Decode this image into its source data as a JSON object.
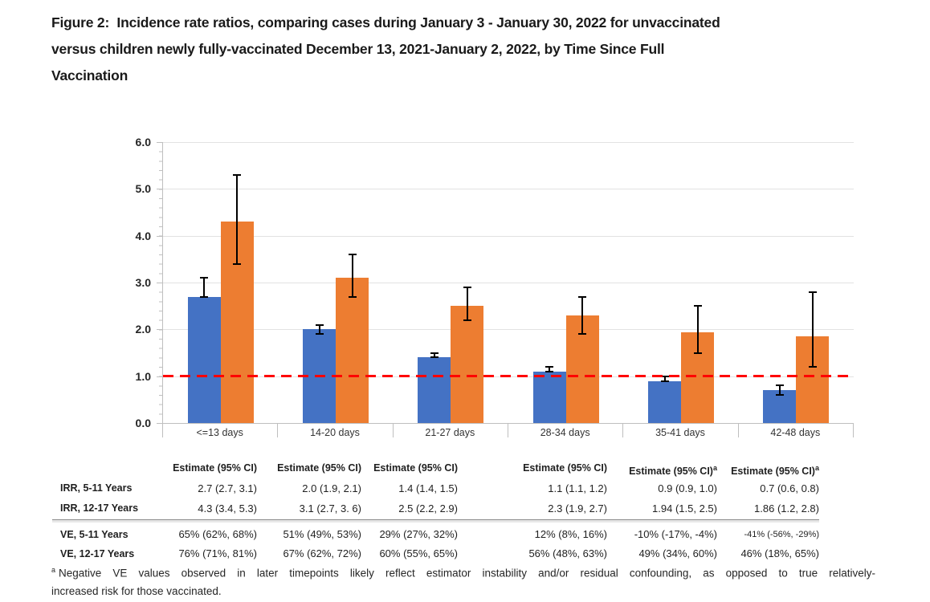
{
  "title_lines": [
    "Figure 2:  Incidence rate ratios, comparing cases during January 3 - January 30, 2022 for unvaccinated",
    "versus children newly fully-vaccinated December 13, 2021-January 2, 2022, by Time Since Full",
    "Vaccination"
  ],
  "chart_data": {
    "type": "bar",
    "title": "Figure 2: Incidence rate ratios, comparing cases during January 3 - January 30, 2022 for unvaccinated versus children newly fully-vaccinated December 13, 2021-January 2, 2022, by Time Since Full Vaccination",
    "xlabel": "",
    "ylabel": "",
    "categories": [
      "<=13 days",
      "14-20 days",
      "21-27 days",
      "28-34 days",
      "35-41 days",
      "42-48 days"
    ],
    "series": [
      {
        "name": "IRR, 5-11 Years",
        "color": "#4472C4",
        "values": [
          2.7,
          2.0,
          1.4,
          1.1,
          0.9,
          0.7
        ],
        "ci_low": [
          2.7,
          1.9,
          1.4,
          1.1,
          0.9,
          0.6
        ],
        "ci_high": [
          3.1,
          2.1,
          1.5,
          1.2,
          1.0,
          0.8
        ]
      },
      {
        "name": "IRR, 12-17 Years",
        "color": "#ED7D31",
        "values": [
          4.3,
          3.1,
          2.5,
          2.3,
          1.94,
          1.86
        ],
        "ci_low": [
          3.4,
          2.7,
          2.2,
          1.9,
          1.5,
          1.2
        ],
        "ci_high": [
          5.3,
          3.6,
          2.9,
          2.7,
          2.5,
          2.8
        ]
      }
    ],
    "ylim": [
      0,
      6
    ],
    "ytick_step": 1.0,
    "ytick_labels": [
      "0.0",
      "1.0",
      "2.0",
      "3.0",
      "4.0",
      "5.0",
      "6.0"
    ],
    "reference_line": {
      "value": 1.0,
      "color": "#FF0000",
      "style": "dashed"
    },
    "grid": true,
    "legend": "none",
    "error_bar_color": "#000000",
    "axis_color": "#BFBFBF",
    "gridline_color": "#E2E2E2"
  },
  "table": {
    "header_columns": [
      {
        "label": "Estimate (95% CI)",
        "sup": ""
      },
      {
        "label": "Estimate (95% CI)",
        "sup": ""
      },
      {
        "label": "Estimate (95% CI)",
        "sup": ""
      },
      {
        "label": "Estimate (95% CI)",
        "sup": ""
      },
      {
        "label": "Estimate (95% CI)",
        "sup": "a"
      },
      {
        "label": "Estimate (95% CI)",
        "sup": "a"
      }
    ],
    "rows": [
      {
        "label": "IRR, 5-11 Years",
        "group": "irr",
        "values": [
          "2.7 (2.7, 3.1)",
          "2.0 (1.9, 2.1)",
          "1.4 (1.4, 1.5)",
          "1.1 (1.1, 1.2)",
          "0.9 (0.9, 1.0)",
          "0.7 (0.6, 0.8)"
        ]
      },
      {
        "label": "IRR, 12-17 Years",
        "group": "irr",
        "values": [
          "4.3 (3.4, 5.3)",
          "3.1 (2.7, 3. 6)",
          "2.5 (2.2, 2.9)",
          "2.3 (1.9, 2.7)",
          "1.94 (1.5, 2.5)",
          "1.86 (1.2, 2.8)"
        ]
      },
      {
        "label": "VE, 5-11 Years",
        "group": "ve",
        "values": [
          "65% (62%, 68%)",
          "51% (49%, 53%)",
          "29% (27%, 32%)",
          "12% (8%, 16%)",
          "-10% (-17%, -4%)",
          "-41% (-56%, -29%)"
        ]
      },
      {
        "label": "VE, 12-17 Years",
        "group": "ve",
        "values": [
          "76% (71%, 81%)",
          "67% (62%, 72%)",
          "60% (55%, 65%)",
          "56% (48%, 63%)",
          "49% (34%, 60%)",
          "46% (18%, 65%)"
        ]
      }
    ]
  },
  "footnote": {
    "sup": "a",
    "line1": "Negative VE values observed in later timepoints likely reflect estimator instability and/or residual confounding, as opposed to true relatively-",
    "line2": "increased risk for those vaccinated."
  }
}
